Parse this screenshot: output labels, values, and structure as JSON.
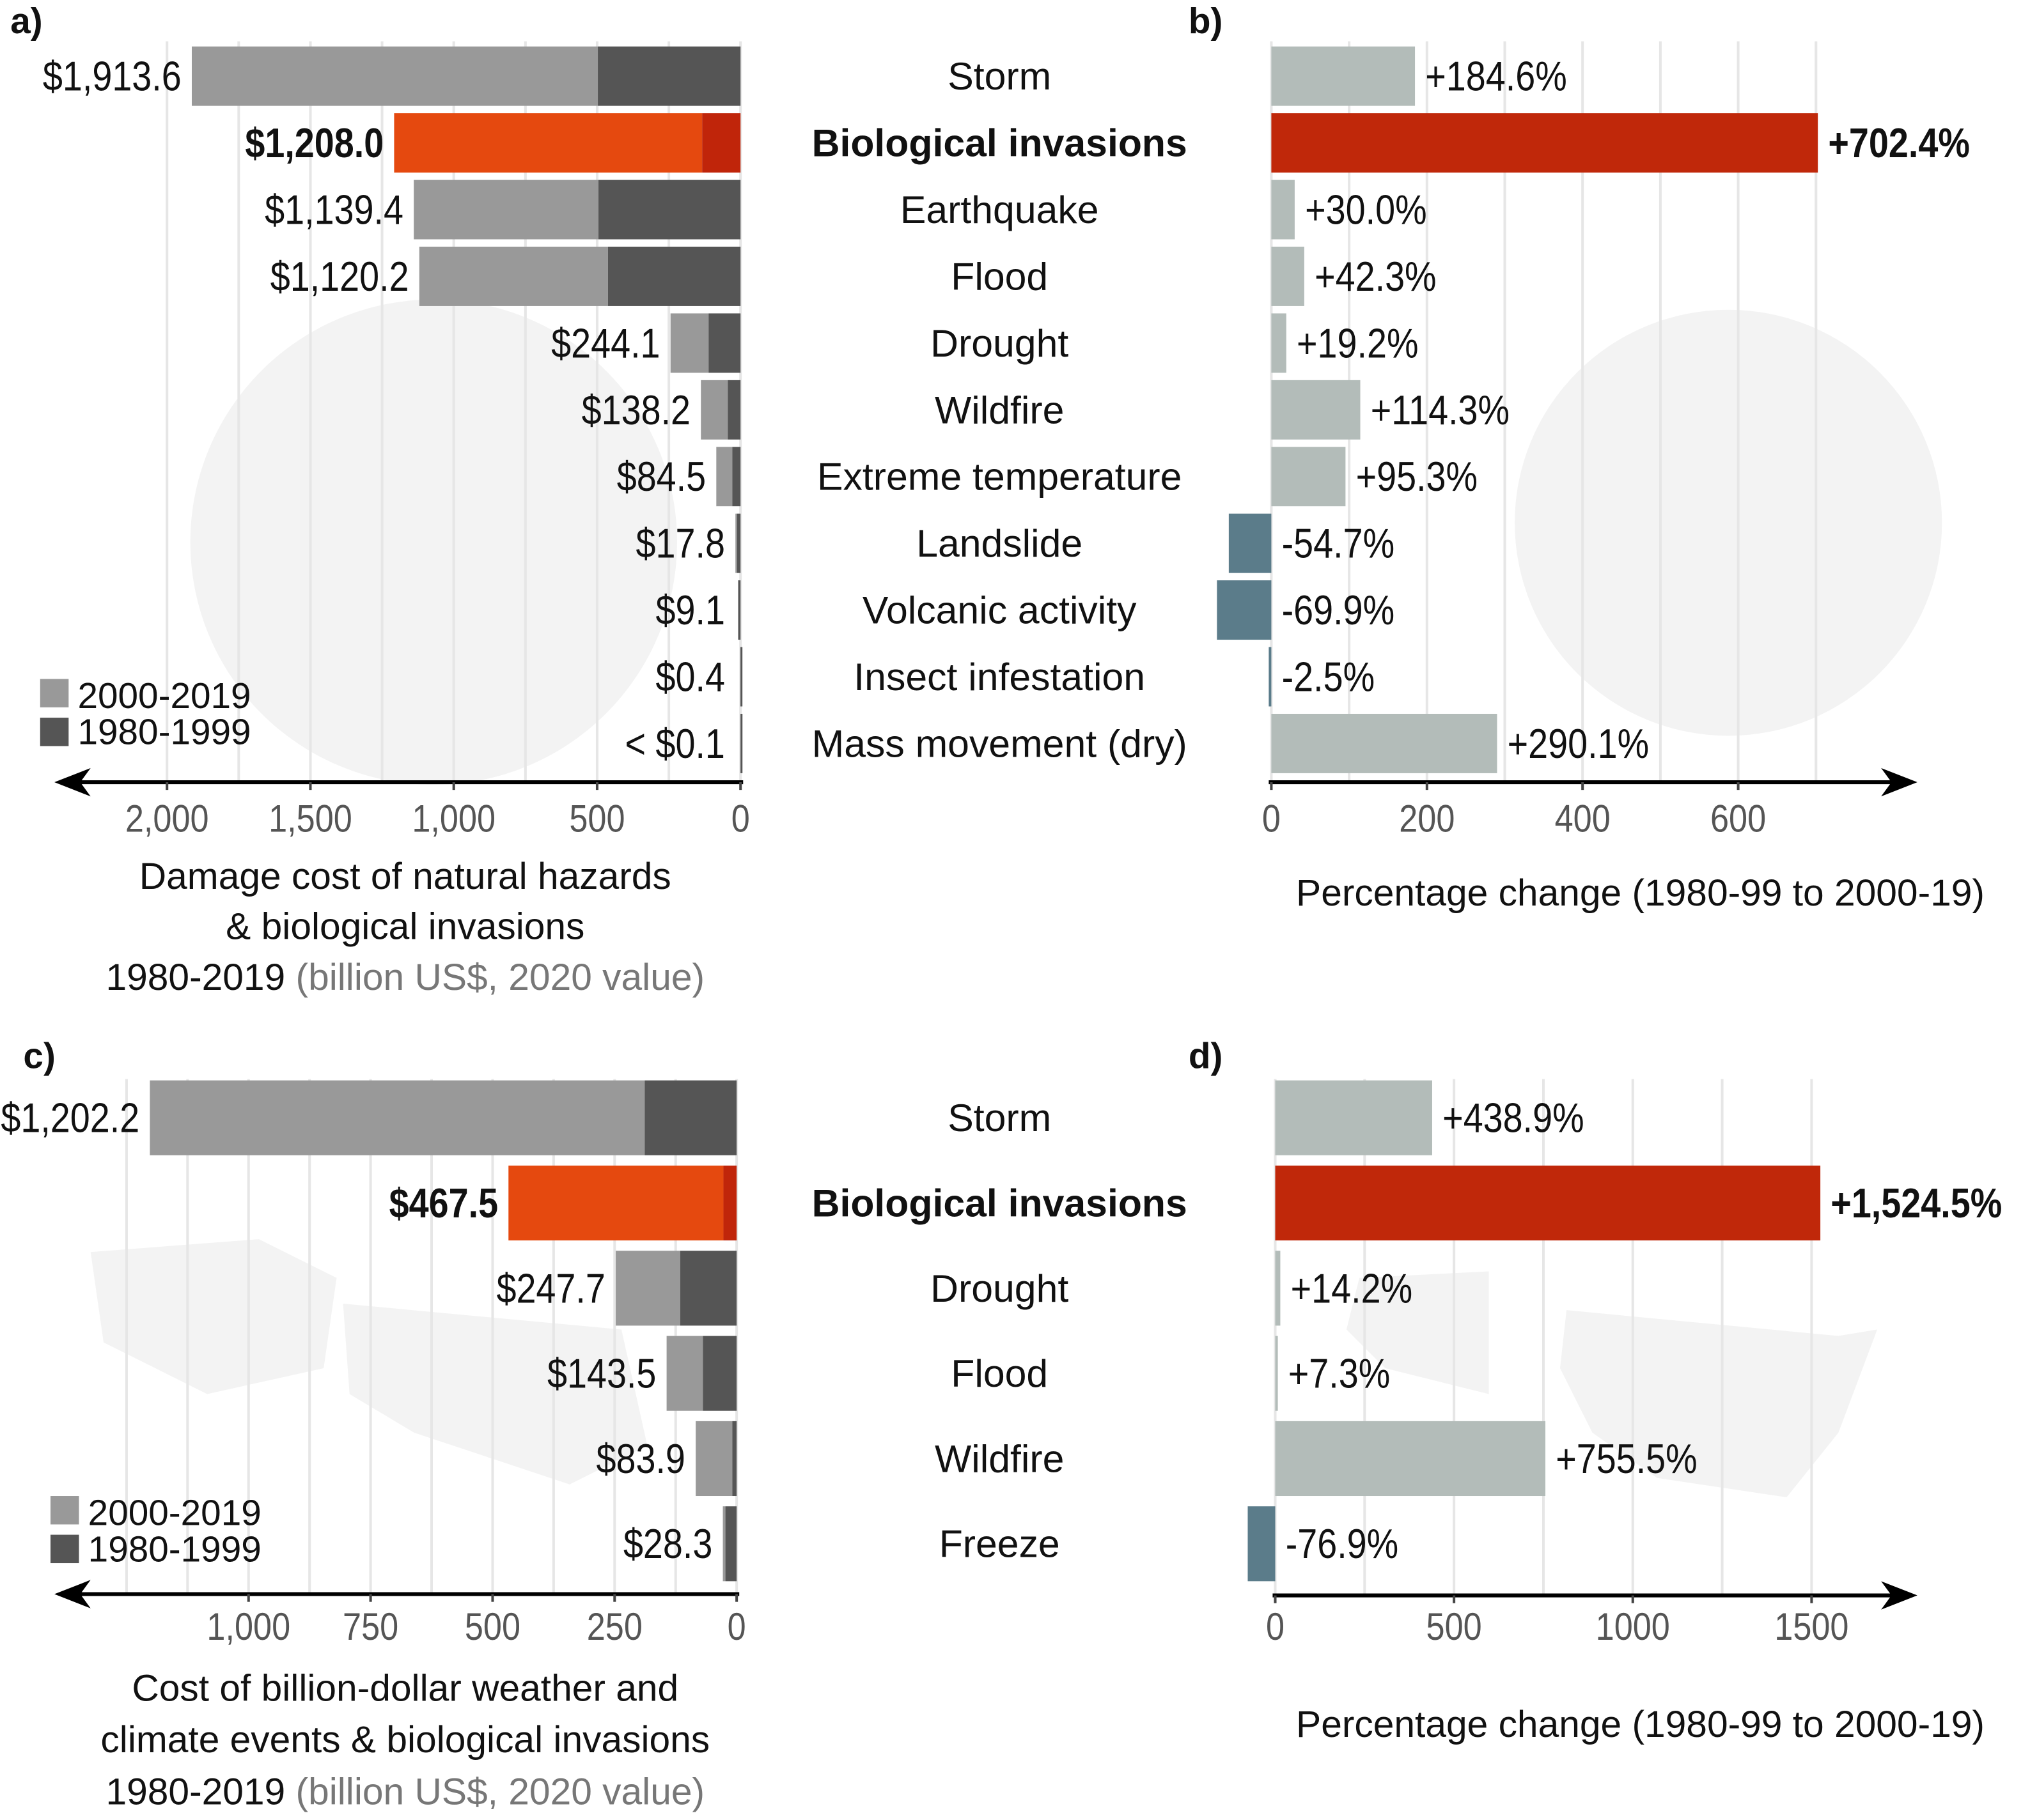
{
  "colors": {
    "recent_period": "#999999",
    "early_period": "#555555",
    "bio_recent": "#e5490f",
    "bio_early": "#c0250a",
    "increase": "#b3bcb9",
    "decrease": "#5b7c8a",
    "bio_change": "#c0280a",
    "grid": "#e6e6e6",
    "tick_text": "#555555"
  },
  "chart_data": [
    {
      "panel": "a)",
      "type": "bar",
      "orientation": "horizontal",
      "stacked": true,
      "direction": "right-to-left",
      "value_labels": [
        "$1,913.6",
        "$1,208.0",
        "$1,139.4",
        "$1,120.2",
        "$244.1",
        "$138.2",
        "$84.5",
        "$17.8",
        "$9.1",
        "$0.4",
        "< $0.1"
      ],
      "totals": [
        1913.6,
        1208.0,
        1139.4,
        1120.2,
        244.1,
        138.2,
        84.5,
        17.8,
        9.1,
        0.4,
        0.05
      ],
      "series": [
        {
          "name": "1980-1999",
          "values": [
            497.6,
            133.9,
            495.4,
            462.3,
            111.4,
            44.0,
            28.6,
            12.3,
            7.0,
            0.2,
            0.03
          ]
        },
        {
          "name": "2000-2019",
          "values": [
            1416.0,
            1074.1,
            644.0,
            657.9,
            132.7,
            94.2,
            55.9,
            5.5,
            2.1,
            0.2,
            0.02
          ]
        }
      ],
      "highlight_index": 1,
      "xlim": [
        0,
        2000
      ],
      "x_ticks": [
        "2,000",
        "1,500",
        "1,000",
        "500",
        "0"
      ],
      "x_tick_values": [
        2000,
        1500,
        1000,
        500,
        0
      ],
      "grid_step": 250,
      "grid": true,
      "legend": {
        "placement": "bottom-left",
        "entries": [
          "2000-2019",
          "1980-1999"
        ]
      },
      "xlabel_lines": [
        "Damage cost of natural hazards",
        "& biological invasions"
      ],
      "xlabel_last": "1980-2019",
      "xlabel_unit": "(billion US$, 2020 value)"
    },
    {
      "panel": "b)",
      "type": "bar",
      "orientation": "horizontal",
      "categories": [
        "Storm",
        "Biological invasions",
        "Earthquake",
        "Flood",
        "Drought",
        "Wildfire",
        "Extreme temperature",
        "Landslide",
        "Volcanic activity",
        "Insect infestation",
        "Mass movement (dry)"
      ],
      "values": [
        184.6,
        702.4,
        30.0,
        42.3,
        19.2,
        114.3,
        95.3,
        -54.7,
        -69.9,
        -2.5,
        290.1
      ],
      "value_labels": [
        "+184.6%",
        "+702.4%",
        "+30.0%",
        "+42.3%",
        "+19.2%",
        "+114.3%",
        "+95.3%",
        "-54.7%",
        "-69.9%",
        "-2.5%",
        "+290.1%"
      ],
      "highlight_index": 1,
      "xlim": [
        -70,
        800
      ],
      "x_ticks": [
        "0",
        "200",
        "400",
        "600"
      ],
      "x_tick_values": [
        0,
        200,
        400,
        600
      ],
      "grid_step": 100,
      "grid": true,
      "xlabel": "Percentage change (1980-99 to 2000-19)"
    },
    {
      "panel": "c)",
      "type": "bar",
      "orientation": "horizontal",
      "stacked": true,
      "direction": "right-to-left",
      "value_labels": [
        "$1,202.2",
        "$467.5",
        "$247.7",
        "$143.5",
        "$83.9",
        "$28.3"
      ],
      "totals": [
        1202.2,
        467.5,
        247.7,
        143.5,
        83.9,
        28.3
      ],
      "series": [
        {
          "name": "1980-1999",
          "values": [
            188.2,
            27.1,
            115.6,
            69.2,
            8.8,
            23.0
          ]
        },
        {
          "name": "2000-2019",
          "values": [
            1014.0,
            440.4,
            132.1,
            74.3,
            75.1,
            5.3
          ]
        }
      ],
      "highlight_index": 1,
      "xlim": [
        0,
        1250
      ],
      "x_ticks": [
        "1,000",
        "750",
        "500",
        "250",
        "0"
      ],
      "x_tick_values": [
        1000,
        750,
        500,
        250,
        0
      ],
      "grid_step": 125,
      "grid": true,
      "legend": {
        "placement": "bottom-left",
        "entries": [
          "2000-2019",
          "1980-1999"
        ]
      },
      "xlabel_lines": [
        "Cost of billion-dollar weather and",
        "climate events & biological invasions"
      ],
      "xlabel_last": "1980-2019",
      "xlabel_unit": "(billion US$, 2020 value)"
    },
    {
      "panel": "d)",
      "type": "bar",
      "orientation": "horizontal",
      "categories": [
        "Storm",
        "Biological invasions",
        "Drought",
        "Flood",
        "Wildfire",
        "Freeze"
      ],
      "values": [
        438.9,
        1524.5,
        14.2,
        7.3,
        755.5,
        -76.9
      ],
      "value_labels": [
        "+438.9%",
        "+1,524.5%",
        "+14.2%",
        "+7.3%",
        "+755.5%",
        "-76.9%"
      ],
      "highlight_index": 1,
      "xlim": [
        -80,
        1700
      ],
      "x_ticks": [
        "0",
        "500",
        "1000",
        "1500"
      ],
      "x_tick_values": [
        0,
        500,
        1000,
        1500
      ],
      "grid_step": 250,
      "grid": true,
      "xlabel": "Percentage change (1980-99 to 2000-19)"
    }
  ]
}
